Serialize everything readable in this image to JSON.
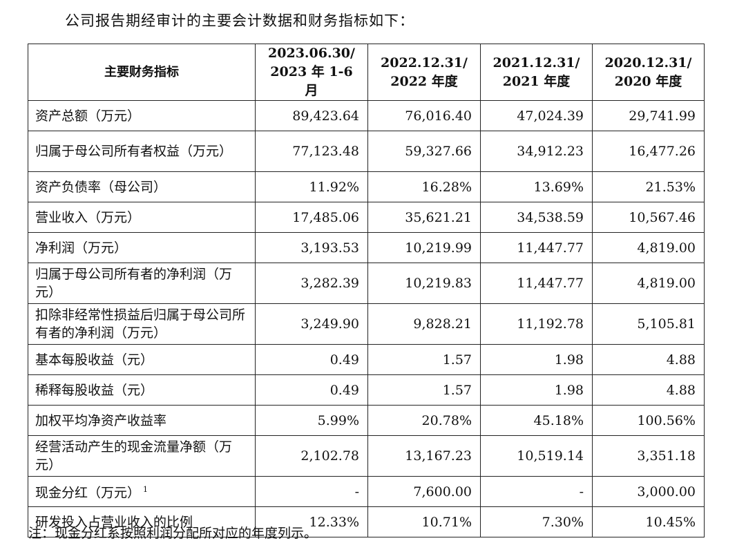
{
  "intro": "公司报告期经审计的主要会计数据和财务指标如下：",
  "table": {
    "header": {
      "label": "主要财务指标",
      "columns": [
        {
          "line1": "2023.06.30/",
          "line2": "2023 年 1-6 月"
        },
        {
          "line1": "2022.12.31/",
          "line2": "2022 年度"
        },
        {
          "line1": "2021.12.31/",
          "line2": "2021 年度"
        },
        {
          "line1": "2020.12.31/",
          "line2": "2020 年度"
        }
      ]
    },
    "rows": [
      {
        "label": "资产总额（万元）",
        "footnote": "",
        "values": [
          "89,423.64",
          "76,016.40",
          "47,024.39",
          "29,741.99"
        ]
      },
      {
        "label": "归属于母公司所有者权益（万元）",
        "footnote": "",
        "values": [
          "77,123.48",
          "59,327.66",
          "34,912.23",
          "16,477.26"
        ]
      },
      {
        "label": "资产负债率（母公司）",
        "footnote": "",
        "values": [
          "11.92%",
          "16.28%",
          "13.69%",
          "21.53%"
        ]
      },
      {
        "label": "营业收入（万元）",
        "footnote": "",
        "values": [
          "17,485.06",
          "35,621.21",
          "34,538.59",
          "10,567.46"
        ]
      },
      {
        "label": "净利润（万元）",
        "footnote": "",
        "values": [
          "3,193.53",
          "10,219.99",
          "11,447.77",
          "4,819.00"
        ]
      },
      {
        "label": "归属于母公司所有者的净利润（万元）",
        "footnote": "",
        "values": [
          "3,282.39",
          "10,219.83",
          "11,447.77",
          "4,819.00"
        ]
      },
      {
        "label": "扣除非经常性损益后归属于母公司所有者的净利润（万元）",
        "footnote": "",
        "values": [
          "3,249.90",
          "9,828.21",
          "11,192.78",
          "5,105.81"
        ]
      },
      {
        "label": "基本每股收益（元）",
        "footnote": "",
        "values": [
          "0.49",
          "1.57",
          "1.98",
          "4.88"
        ]
      },
      {
        "label": "稀释每股收益（元）",
        "footnote": "",
        "values": [
          "0.49",
          "1.57",
          "1.98",
          "4.88"
        ]
      },
      {
        "label": "加权平均净资产收益率",
        "footnote": "",
        "values": [
          "5.99%",
          "20.78%",
          "45.18%",
          "100.56%"
        ]
      },
      {
        "label": "经营活动产生的现金流量净额（万元）",
        "footnote": "",
        "values": [
          "2,102.78",
          "13,167.23",
          "10,519.14",
          "3,351.18"
        ]
      },
      {
        "label": "现金分红（万元）",
        "footnote": "1",
        "values": [
          "-",
          "7,600.00",
          "-",
          "3,000.00"
        ]
      },
      {
        "label": "研发投入占营业收入的比例",
        "footnote": "",
        "values": [
          "12.33%",
          "10.71%",
          "7.30%",
          "10.45%"
        ]
      }
    ]
  },
  "note": "注：现金分红系按照利润分配所对应的年度列示。"
}
